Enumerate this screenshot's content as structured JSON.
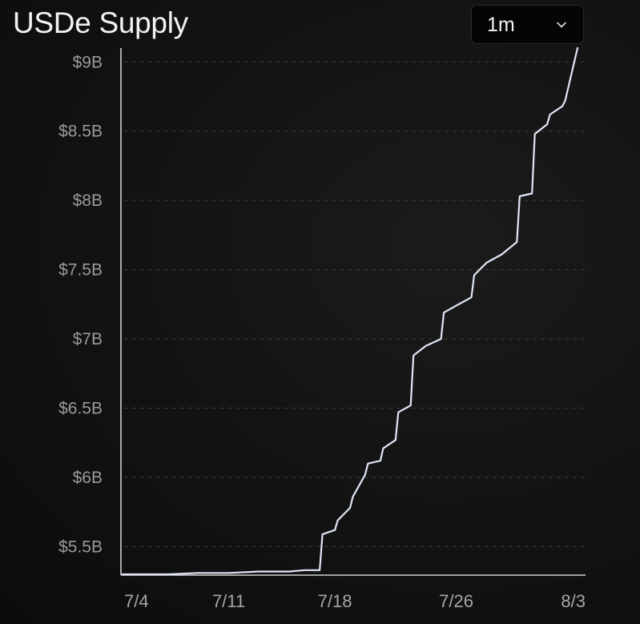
{
  "header": {
    "title": "USDe Supply",
    "range_selected": "1m"
  },
  "colors": {
    "line": "#dfe6f7",
    "axis": "#d0d0d0",
    "grid": "#3a3a3a",
    "tick_text": "#9a9a9a"
  },
  "icons": {
    "range_dropdown": "chevron-down-icon"
  },
  "chart_data": {
    "type": "line",
    "title": "USDe Supply",
    "xlabel": "",
    "ylabel": "",
    "ylim": [
      5.3,
      9.1
    ],
    "y_unit": "billion USD",
    "y_ticks": [
      5.5,
      6,
      6.5,
      7,
      7.5,
      8,
      8.5,
      9
    ],
    "y_tick_labels": [
      "$5.5B",
      "$6B",
      "$6.5B",
      "$7B",
      "$7.5B",
      "$8B",
      "$8.5B",
      "$9B"
    ],
    "x_range": [
      "2024-07-04",
      "2024-08-03"
    ],
    "x_ticks": [
      "2024-07-04",
      "2024-07-11",
      "2024-07-18",
      "2024-07-26",
      "2024-08-03"
    ],
    "x_tick_labels": [
      "7/4",
      "7/11",
      "7/18",
      "7/26",
      "8/3"
    ],
    "grid": "horizontal dashed",
    "legend": "none",
    "series": [
      {
        "points": [
          [
            "2024-07-04",
            5.3
          ],
          [
            "2024-07-06",
            5.3
          ],
          [
            "2024-07-07",
            5.3
          ],
          [
            "2024-07-09",
            5.31
          ],
          [
            "2024-07-11",
            5.31
          ],
          [
            "2024-07-13",
            5.32
          ],
          [
            "2024-07-15",
            5.32
          ],
          [
            "2024-07-16",
            5.33
          ],
          [
            "2024-07-17",
            5.33
          ],
          [
            "2024-07-17",
            5.59
          ],
          [
            "2024-07-18",
            5.62
          ],
          [
            "2024-07-18",
            5.69
          ],
          [
            "2024-07-19",
            5.78
          ],
          [
            "2024-07-19",
            5.86
          ],
          [
            "2024-07-20",
            6.02
          ],
          [
            "2024-07-20",
            6.1
          ],
          [
            "2024-07-21",
            6.12
          ],
          [
            "2024-07-21",
            6.21
          ],
          [
            "2024-07-22",
            6.27
          ],
          [
            "2024-07-22",
            6.47
          ],
          [
            "2024-07-23",
            6.52
          ],
          [
            "2024-07-23",
            6.88
          ],
          [
            "2024-07-24",
            6.95
          ],
          [
            "2024-07-25",
            7.0
          ],
          [
            "2024-07-25",
            7.19
          ],
          [
            "2024-07-26",
            7.24
          ],
          [
            "2024-07-27",
            7.3
          ],
          [
            "2024-07-27",
            7.46
          ],
          [
            "2024-07-28",
            7.55
          ],
          [
            "2024-07-29",
            7.61
          ],
          [
            "2024-07-30",
            7.7
          ],
          [
            "2024-07-30",
            8.03
          ],
          [
            "2024-07-31",
            8.05
          ],
          [
            "2024-07-31",
            8.48
          ],
          [
            "2024-08-01",
            8.55
          ],
          [
            "2024-08-01",
            8.62
          ],
          [
            "2024-08-02",
            8.68
          ],
          [
            "2024-08-02",
            8.72
          ],
          [
            "2024-08-03",
            9.1
          ]
        ]
      }
    ]
  }
}
